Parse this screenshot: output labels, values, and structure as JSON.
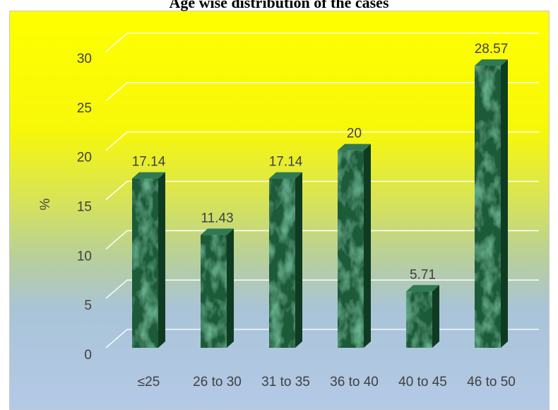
{
  "chart_data": {
    "type": "bar",
    "title": "Age wise distribution of the cases",
    "ylabel": "%",
    "xlabel": "",
    "categories": [
      "≤25",
      "26 to 30",
      "31 to 35",
      "36 to 40",
      "40 to 45",
      "46 to 50"
    ],
    "values": [
      17.14,
      11.43,
      17.14,
      20,
      5.71,
      28.57
    ],
    "value_labels": [
      "17.14",
      "11.43",
      "17.14",
      "20",
      "5.71",
      "28.57"
    ],
    "yticks": [
      "0",
      "5",
      "10",
      "15",
      "20",
      "25",
      "30"
    ],
    "ylim": [
      0,
      30
    ],
    "grid": true,
    "bar_style": "3d",
    "colors": {
      "bar_front": "#1b5a39",
      "bar_side": "#0f3b23",
      "bar_top": "#2f7a52",
      "grid": "#ffffff",
      "text": "#404040",
      "bg_top": "#ffff00",
      "bg_bottom": "#b4c9e6"
    }
  }
}
